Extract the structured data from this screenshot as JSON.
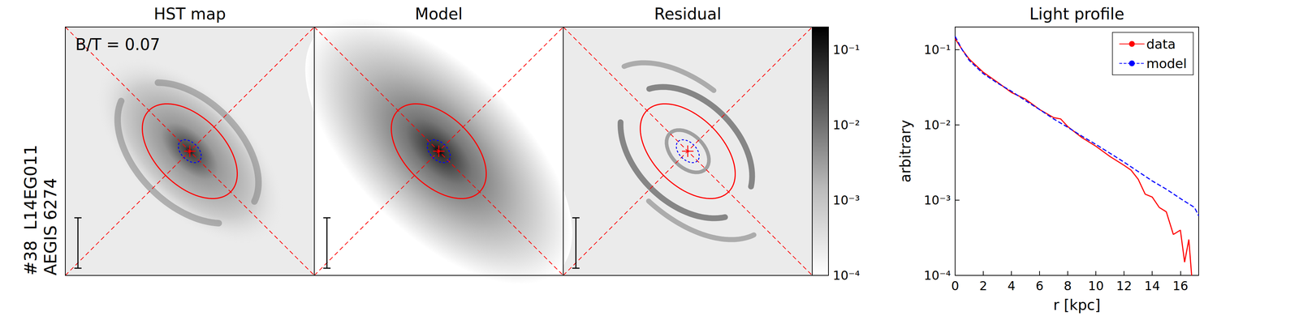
{
  "figure_label": [
    "#38  L14EG011",
    "AEGIS 6274"
  ],
  "panels": [
    {
      "title": "HST map",
      "annotation": "B/T = 0.07"
    },
    {
      "title": "Model"
    },
    {
      "title": "Residual"
    }
  ],
  "colorbar": {
    "log": true,
    "range": [
      0.0001,
      0.2
    ],
    "ticks": [
      {
        "value": 0.0001,
        "label": "10⁻⁴"
      },
      {
        "value": 0.001,
        "label": "10⁻³"
      },
      {
        "value": 0.01,
        "label": "10⁻²"
      },
      {
        "value": 0.1,
        "label": "10⁻¹"
      }
    ]
  },
  "chart_data": {
    "type": "line",
    "title": "Light profile",
    "x_label": "r [kpc]",
    "y_label": "arbitrary",
    "log": "y",
    "legend": "upper right",
    "grid": false,
    "xlim": [
      0,
      17.3
    ],
    "xticks": [
      0,
      2,
      4,
      6,
      8,
      10,
      12,
      14,
      16
    ],
    "ylim": [
      0.0001,
      0.2
    ],
    "yticks": [
      {
        "value": 0.0001,
        "label": "10⁻⁴"
      },
      {
        "value": 0.001,
        "label": "10⁻³"
      },
      {
        "value": 0.01,
        "label": "10⁻²"
      },
      {
        "value": 0.1,
        "label": "10⁻¹"
      }
    ],
    "series": [
      {
        "name": "data",
        "color": "#ff0000",
        "line_style": "solid",
        "x": [
          0,
          0.5,
          1,
          2,
          3,
          4,
          5,
          6,
          7,
          7.5,
          8,
          9,
          10,
          11,
          12,
          12.5,
          13,
          13.5,
          14,
          14.5,
          15,
          15.5,
          16,
          16.3,
          16.6,
          16.8
        ],
        "values": [
          0.14,
          0.1,
          0.075,
          0.05,
          0.037,
          0.027,
          0.022,
          0.016,
          0.0125,
          0.012,
          0.0095,
          0.0068,
          0.0052,
          0.0038,
          0.0029,
          0.0025,
          0.0019,
          0.0012,
          0.0011,
          0.0008,
          0.0007,
          0.00035,
          0.0004,
          0.00015,
          0.0003,
          0.0001
        ]
      },
      {
        "name": "model",
        "color": "#0000ff",
        "line_style": "dashed",
        "x": [
          0,
          0.5,
          1,
          2,
          3,
          4,
          5,
          6,
          7,
          8,
          9,
          10,
          11,
          12,
          13,
          14,
          15,
          16,
          17,
          17.3
        ],
        "values": [
          0.15,
          0.1,
          0.072,
          0.048,
          0.036,
          0.028,
          0.021,
          0.016,
          0.012,
          0.0093,
          0.0071,
          0.0055,
          0.0042,
          0.0032,
          0.0024,
          0.0018,
          0.0014,
          0.00105,
          0.0008,
          0.00062
        ]
      }
    ]
  }
}
